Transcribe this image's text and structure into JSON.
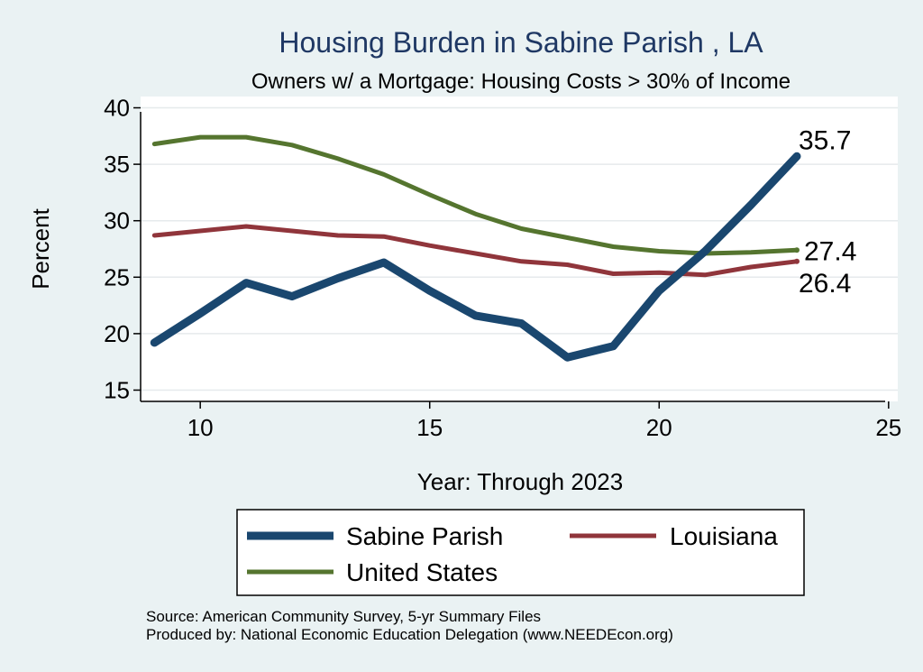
{
  "chart_data": {
    "type": "line",
    "title": "Housing Burden in Sabine Parish , LA",
    "subtitle": "Owners w/ a Mortgage: Housing Costs > 30% of Income",
    "xlabel": "Year: Through 2023",
    "ylabel": "Percent",
    "xlim": [
      8.7,
      25.2
    ],
    "ylim": [
      14,
      41
    ],
    "x_ticks": [
      10,
      15,
      20,
      25
    ],
    "y_ticks": [
      15,
      20,
      25,
      30,
      35,
      40
    ],
    "grid": true,
    "x": [
      9,
      10,
      11,
      12,
      13,
      14,
      15,
      16,
      17,
      18,
      19,
      20,
      21,
      22,
      23
    ],
    "series": [
      {
        "name": "Sabine Parish",
        "color": "#1a476f",
        "values": [
          19.2,
          21.8,
          24.5,
          23.3,
          24.9,
          26.3,
          23.8,
          21.6,
          20.9,
          17.9,
          18.9,
          23.8,
          27.3,
          31.4,
          35.7
        ],
        "end_label": "35.7"
      },
      {
        "name": "Louisiana",
        "color": "#90353b",
        "values": [
          28.7,
          29.1,
          29.5,
          29.1,
          28.7,
          28.6,
          27.8,
          27.1,
          26.4,
          26.1,
          25.3,
          25.4,
          25.2,
          25.9,
          26.4
        ],
        "end_label": "26.4"
      },
      {
        "name": "United States",
        "color": "#55752f",
        "values": [
          36.8,
          37.4,
          37.4,
          36.7,
          35.5,
          34.1,
          32.3,
          30.6,
          29.3,
          28.5,
          27.7,
          27.3,
          27.1,
          27.2,
          27.4
        ],
        "end_label": "27.4"
      }
    ],
    "legend": [
      "Sabine Parish",
      "Louisiana",
      "United States"
    ],
    "legend_position": "bottom"
  },
  "footer": {
    "source": "Source: American Community Survey, 5-yr Summary Files",
    "produced_by": "Produced by: National Economic Education Delegation (www.NEEDEcon.org)"
  },
  "colors": {
    "background": "#eaf2f3",
    "plot_background": "#ffffff",
    "title": "#1f3864"
  }
}
